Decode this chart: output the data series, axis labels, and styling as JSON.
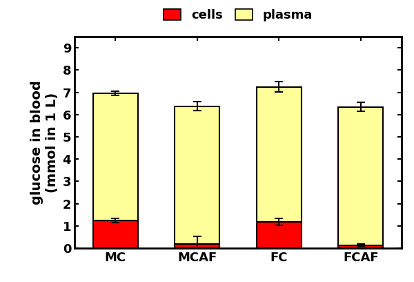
{
  "categories": [
    "MC",
    "MCAF",
    "FC",
    "FCAF"
  ],
  "cells_values": [
    1.25,
    0.18,
    1.18,
    0.13
  ],
  "plasma_values": [
    5.7,
    6.2,
    6.07,
    6.22
  ],
  "total_values": [
    6.95,
    6.38,
    7.25,
    6.35
  ],
  "cells_errors": [
    0.1,
    0.35,
    0.15,
    0.05
  ],
  "total_errors": [
    0.1,
    0.2,
    0.22,
    0.2
  ],
  "cells_color": "#FF0000",
  "plasma_color": "#FFFF99",
  "bar_edge_color": "#000000",
  "bar_width": 0.55,
  "ylabel_line1": "glucose in blood",
  "ylabel_line2": "(mmol in 1 L)",
  "ylim": [
    0,
    9.5
  ],
  "yticks": [
    0,
    1,
    2,
    3,
    4,
    5,
    6,
    7,
    8,
    9
  ],
  "legend_labels": [
    "cells",
    "plasma"
  ],
  "label_fontsize": 14,
  "tick_fontsize": 13,
  "legend_fontsize": 13,
  "figure_facecolor": "#FFFFFF",
  "axes_facecolor": "#FFFFFF"
}
